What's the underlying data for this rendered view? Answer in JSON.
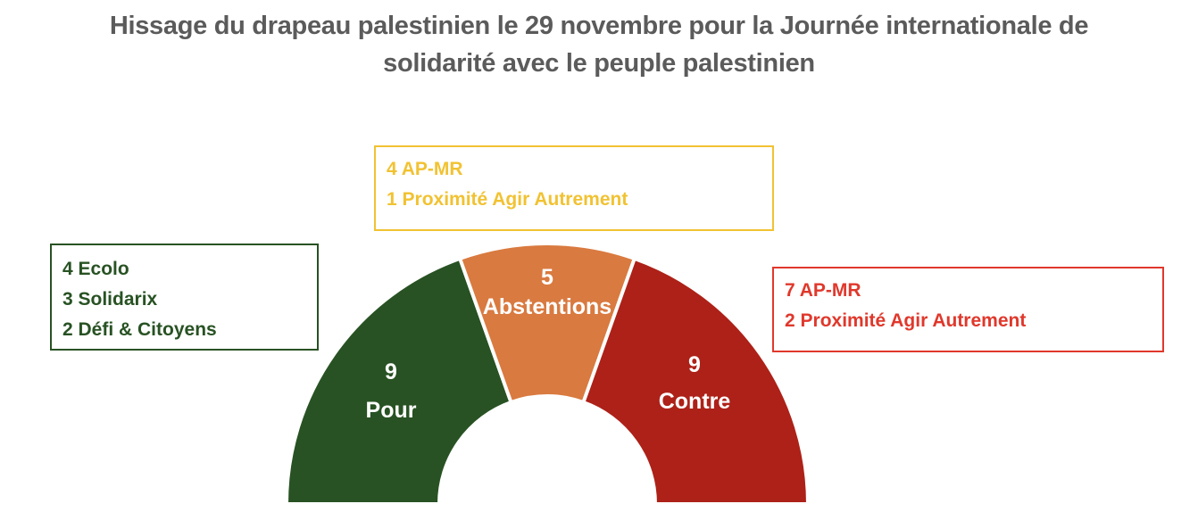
{
  "title_lines": [
    "Hissage du drapeau palestinien  le 29 novembre pour la Journée internationale de",
    "solidarité avec le peuple palestinien"
  ],
  "chart_data": {
    "type": "pie",
    "variant": "half-donut",
    "title": "Hissage du drapeau palestinien  le 29 novembre pour la Journée internationale de solidarité avec le peuple palestinien",
    "segments": [
      {
        "key": "pour",
        "value": 9,
        "label": "Pour",
        "color": "#285223",
        "breakdown": [
          "4 Ecolo",
          "3 Solidarix",
          "2 Défi & Citoyens"
        ],
        "box_color": "#285223"
      },
      {
        "key": "abst",
        "value": 5,
        "label": "Abstentions",
        "color": "#d97a40",
        "breakdown": [
          "4 AP-MR",
          "1 Proximité Agir Autrement"
        ],
        "box_color": "#f1c232"
      },
      {
        "key": "contre",
        "value": 9,
        "label": "Contre",
        "color": "#ad2118",
        "breakdown": [
          "7 AP-MR",
          "2 Proximité Agir Autrement"
        ],
        "box_color": "#e0382c"
      }
    ]
  }
}
